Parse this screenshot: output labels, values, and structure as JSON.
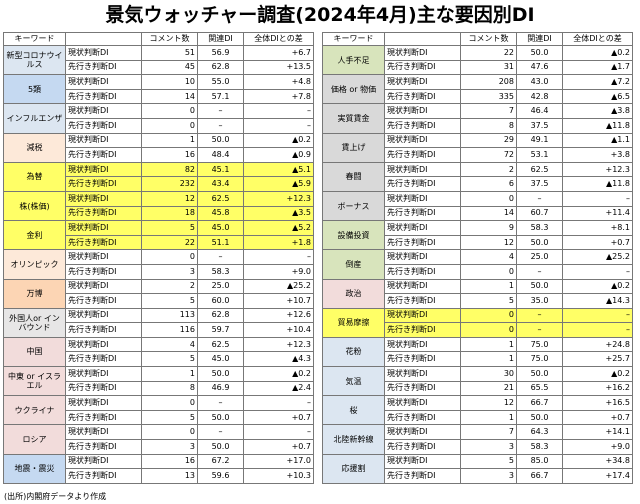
{
  "title": "景気ウォッチャー調査(2024年4月)主な要因別DI",
  "source": "(出所)内閣府データより作成",
  "tables": [
    {
      "headers": [
        "キーワード",
        "コメント数",
        "関連DI",
        "全体DIとの差"
      ],
      "groups": [
        {
          "keyword": "新型コロナウイルス",
          "rows": [
            {
              "type": "現状判断DI",
              "count": 51,
              "di": "56.9",
              "diff": "+6.7"
            },
            {
              "type": "先行き判断DI",
              "count": 45,
              "di": "62.8",
              "diff": "+13.5"
            }
          ]
        },
        {
          "keyword": "5類",
          "rows": [
            {
              "type": "現状判断DI",
              "count": 10,
              "di": "55.0",
              "diff": "+4.8"
            },
            {
              "type": "先行き判断DI",
              "count": 14,
              "di": "57.1",
              "diff": "+7.8"
            }
          ]
        },
        {
          "keyword": "インフルエンザ",
          "rows": [
            {
              "type": "現状判断DI",
              "count": 0,
              "di": "–",
              "diff": "–"
            },
            {
              "type": "先行き判断DI",
              "count": 0,
              "di": "–",
              "diff": "–"
            }
          ]
        },
        {
          "keyword": "減税",
          "rows": [
            {
              "type": "現状判断DI",
              "count": 1,
              "di": "50.0",
              "diff": "▲0.2"
            },
            {
              "type": "先行き判断DI",
              "count": 16,
              "di": "48.4",
              "diff": "▲0.9"
            }
          ]
        },
        {
          "keyword": "為替",
          "rows": [
            {
              "type": "現状判断DI",
              "count": 82,
              "di": "45.1",
              "diff": "▲5.1"
            },
            {
              "type": "先行き判断DI",
              "count": 232,
              "di": "43.4",
              "diff": "▲5.9"
            }
          ]
        },
        {
          "keyword": "株(株価)",
          "rows": [
            {
              "type": "現状判断DI",
              "count": 12,
              "di": "62.5",
              "diff": "+12.3"
            },
            {
              "type": "先行き判断DI",
              "count": 18,
              "di": "45.8",
              "diff": "▲3.5"
            }
          ]
        },
        {
          "keyword": "金利",
          "rows": [
            {
              "type": "現状判断DI",
              "count": 5,
              "di": "45.0",
              "diff": "▲5.2"
            },
            {
              "type": "先行き判断DI",
              "count": 22,
              "di": "51.1",
              "diff": "+1.8"
            }
          ]
        },
        {
          "keyword": "オリンピック",
          "rows": [
            {
              "type": "現状判断DI",
              "count": 0,
              "di": "–",
              "diff": "–"
            },
            {
              "type": "先行き判断DI",
              "count": 3,
              "di": "58.3",
              "diff": "+9.0"
            }
          ]
        },
        {
          "keyword": "万博",
          "rows": [
            {
              "type": "現状判断DI",
              "count": 2,
              "di": "25.0",
              "diff": "▲25.2"
            },
            {
              "type": "先行き判断DI",
              "count": 5,
              "di": "60.0",
              "diff": "+10.7"
            }
          ]
        },
        {
          "keyword": "外国人or インバウンド",
          "rows": [
            {
              "type": "現状判断DI",
              "count": 113,
              "di": "62.8",
              "diff": "+12.6"
            },
            {
              "type": "先行き判断DI",
              "count": 116,
              "di": "59.7",
              "diff": "+10.4"
            }
          ]
        },
        {
          "keyword": "中国",
          "rows": [
            {
              "type": "現状判断DI",
              "count": 4,
              "di": "62.5",
              "diff": "+12.3"
            },
            {
              "type": "先行き判断DI",
              "count": 5,
              "di": "45.0",
              "diff": "▲4.3"
            }
          ]
        },
        {
          "keyword": "中東 or イスラエル",
          "rows": [
            {
              "type": "現状判断DI",
              "count": 1,
              "di": "50.0",
              "diff": "▲0.2"
            },
            {
              "type": "先行き判断DI",
              "count": 8,
              "di": "46.9",
              "diff": "▲2.4"
            }
          ]
        },
        {
          "keyword": "ウクライナ",
          "rows": [
            {
              "type": "現状判断DI",
              "count": 0,
              "di": "–",
              "diff": "–"
            },
            {
              "type": "先行き判断DI",
              "count": 5,
              "di": "50.0",
              "diff": "+0.7"
            }
          ]
        },
        {
          "keyword": "ロシア",
          "rows": [
            {
              "type": "現状判断DI",
              "count": 0,
              "di": "–",
              "diff": "–"
            },
            {
              "type": "先行き判断DI",
              "count": 3,
              "di": "50.0",
              "diff": "+0.7"
            }
          ]
        },
        {
          "keyword": "地震・震災",
          "rows": [
            {
              "type": "現状判断DI",
              "count": 16,
              "di": "67.2",
              "diff": "+17.0"
            },
            {
              "type": "先行き判断DI",
              "count": 13,
              "di": "59.6",
              "diff": "+10.3"
            }
          ]
        }
      ]
    },
    {
      "headers": [
        "キーワード",
        "コメント数",
        "関連DI",
        "全体DIとの差"
      ],
      "groups": [
        {
          "keyword": "人手不足",
          "rows": [
            {
              "type": "現状判断DI",
              "count": 22,
              "di": "50.0",
              "diff": "▲0.2"
            },
            {
              "type": "先行き判断DI",
              "count": 31,
              "di": "47.6",
              "diff": "▲1.7"
            }
          ]
        },
        {
          "keyword": "価格 or 物価",
          "rows": [
            {
              "type": "現状判断DI",
              "count": 208,
              "di": "43.0",
              "diff": "▲7.2"
            },
            {
              "type": "先行き判断DI",
              "count": 335,
              "di": "42.8",
              "diff": "▲6.5"
            }
          ]
        },
        {
          "keyword": "実質賃金",
          "rows": [
            {
              "type": "現状判断DI",
              "count": 7,
              "di": "46.4",
              "diff": "▲3.8"
            },
            {
              "type": "先行き判断DI",
              "count": 8,
              "di": "37.5",
              "diff": "▲11.8"
            }
          ]
        },
        {
          "keyword": "賃上げ",
          "rows": [
            {
              "type": "現状判断DI",
              "count": 29,
              "di": "49.1",
              "diff": "▲1.1"
            },
            {
              "type": "先行き判断DI",
              "count": 72,
              "di": "53.1",
              "diff": "+3.8"
            }
          ]
        },
        {
          "keyword": "春闘",
          "rows": [
            {
              "type": "現状判断DI",
              "count": 2,
              "di": "62.5",
              "diff": "+12.3"
            },
            {
              "type": "先行き判断DI",
              "count": 6,
              "di": "37.5",
              "diff": "▲11.8"
            }
          ]
        },
        {
          "keyword": "ボーナス",
          "rows": [
            {
              "type": "現状判断DI",
              "count": 0,
              "di": "–",
              "diff": "–"
            },
            {
              "type": "先行き判断DI",
              "count": 14,
              "di": "60.7",
              "diff": "+11.4"
            }
          ]
        },
        {
          "keyword": "設備投資",
          "rows": [
            {
              "type": "現状判断DI",
              "count": 9,
              "di": "58.3",
              "diff": "+8.1"
            },
            {
              "type": "先行き判断DI",
              "count": 12,
              "di": "50.0",
              "diff": "+0.7"
            }
          ]
        },
        {
          "keyword": "倒産",
          "rows": [
            {
              "type": "現状判断DI",
              "count": 4,
              "di": "25.0",
              "diff": "▲25.2"
            },
            {
              "type": "先行き判断DI",
              "count": 0,
              "di": "–",
              "diff": "–"
            }
          ]
        },
        {
          "keyword": "政治",
          "rows": [
            {
              "type": "現状判断DI",
              "count": 1,
              "di": "50.0",
              "diff": "▲0.2"
            },
            {
              "type": "先行き判断DI",
              "count": 5,
              "di": "35.0",
              "diff": "▲14.3"
            }
          ]
        },
        {
          "keyword": "貿易摩擦",
          "rows": [
            {
              "type": "現状判断DI",
              "count": 0,
              "di": "–",
              "diff": "–"
            },
            {
              "type": "先行き判断DI",
              "count": 0,
              "di": "–",
              "diff": "–"
            }
          ]
        },
        {
          "keyword": "花粉",
          "rows": [
            {
              "type": "現状判断DI",
              "count": 1,
              "di": "75.0",
              "diff": "+24.8"
            },
            {
              "type": "先行き判断DI",
              "count": 1,
              "di": "75.0",
              "diff": "+25.7"
            }
          ]
        },
        {
          "keyword": "気温",
          "rows": [
            {
              "type": "現状判断DI",
              "count": 30,
              "di": "50.0",
              "diff": "▲0.2"
            },
            {
              "type": "先行き判断DI",
              "count": 21,
              "di": "65.5",
              "diff": "+16.2"
            }
          ]
        },
        {
          "keyword": "桜",
          "rows": [
            {
              "type": "現状判断DI",
              "count": 12,
              "di": "66.7",
              "diff": "+16.5"
            },
            {
              "type": "先行き判断DI",
              "count": 1,
              "di": "50.0",
              "diff": "+0.7"
            }
          ]
        },
        {
          "keyword": "北陸新幹線",
          "rows": [
            {
              "type": "現状判断DI",
              "count": 7,
              "di": "64.3",
              "diff": "+14.1"
            },
            {
              "type": "先行き判断DI",
              "count": 3,
              "di": "58.3",
              "diff": "+9.0"
            }
          ]
        },
        {
          "keyword": "応援割",
          "rows": [
            {
              "type": "現状判断DI",
              "count": 5,
              "di": "85.0",
              "diff": "+34.8"
            },
            {
              "type": "先行き判断DI",
              "count": 3,
              "di": "66.7",
              "diff": "+17.4"
            }
          ]
        }
      ]
    }
  ]
}
